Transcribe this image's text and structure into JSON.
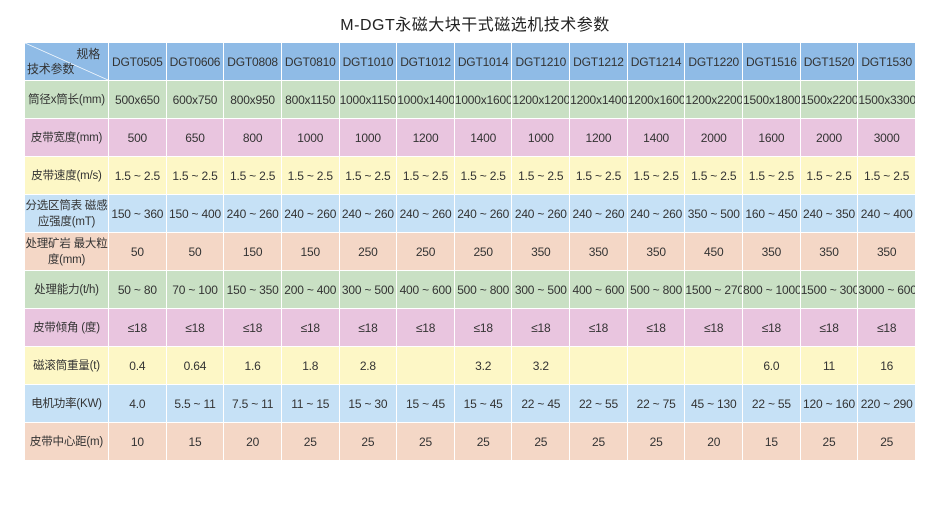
{
  "title": "M-DGT永磁大块干式磁选机技术参数",
  "header": {
    "corner_top": "规格",
    "corner_bottom": "技术参数",
    "models": [
      "DGT0505",
      "DGT0606",
      "DGT0808",
      "DGT0810",
      "DGT1010",
      "DGT1012",
      "DGT1014",
      "DGT1210",
      "DGT1212",
      "DGT1214",
      "DGT1220",
      "DGT1516",
      "DGT1520",
      "DGT1530"
    ]
  },
  "colors": {
    "header": "#8fbbe6",
    "green": "#c9e0c4",
    "pink": "#e9c5df",
    "yellow": "#fdf7c6",
    "blue": "#c6e1f6",
    "salmon": "#f4d7c6"
  },
  "rows": [
    {
      "label": "筒径x筒长(mm)",
      "color": "#c9e0c4",
      "values": [
        "500x650",
        "600x750",
        "800x950",
        "800x1150",
        "1000x1150",
        "1000x1400",
        "1000x1600",
        "1200x1200",
        "1200x1400",
        "1200x1600",
        "1200x2200",
        "1500x1800",
        "1500x2200",
        "1500x3300"
      ]
    },
    {
      "label": "皮带宽度(mm)",
      "color": "#e9c5df",
      "values": [
        "500",
        "650",
        "800",
        "1000",
        "1000",
        "1200",
        "1400",
        "1000",
        "1200",
        "1400",
        "2000",
        "1600",
        "2000",
        "3000"
      ]
    },
    {
      "label": "皮带速度(m/s)",
      "color": "#fdf7c6",
      "values": [
        "1.5 ~ 2.5",
        "1.5 ~ 2.5",
        "1.5 ~ 2.5",
        "1.5 ~ 2.5",
        "1.5 ~ 2.5",
        "1.5 ~ 2.5",
        "1.5 ~ 2.5",
        "1.5 ~ 2.5",
        "1.5 ~ 2.5",
        "1.5 ~ 2.5",
        "1.5 ~ 2.5",
        "1.5 ~ 2.5",
        "1.5 ~ 2.5",
        "1.5 ~ 2.5"
      ]
    },
    {
      "label": "分选区筒表 磁感应强度(mT)",
      "color": "#c6e1f6",
      "values": [
        "150 ~ 360",
        "150 ~ 400",
        "240 ~ 260",
        "240 ~ 260",
        "240 ~ 260",
        "240 ~ 260",
        "240 ~ 260",
        "240 ~ 260",
        "240 ~ 260",
        "240 ~ 260",
        "350 ~ 500",
        "160 ~ 450",
        "240 ~ 350",
        "240 ~ 400"
      ]
    },
    {
      "label": "处理矿岩 最大粒度(mm)",
      "color": "#f4d7c6",
      "values": [
        "50",
        "50",
        "150",
        "150",
        "250",
        "250",
        "250",
        "350",
        "350",
        "350",
        "450",
        "350",
        "350",
        "350"
      ]
    },
    {
      "label": "处理能力(t/h)",
      "color": "#c9e0c4",
      "values": [
        "50 ~ 80",
        "70 ~ 100",
        "150 ~ 350",
        "200 ~ 400",
        "300 ~ 500",
        "400 ~ 600",
        "500 ~ 800",
        "300 ~ 500",
        "400 ~ 600",
        "500 ~ 800",
        "1500 ~ 2700",
        "800 ~ 1000",
        "1500 ~ 3000",
        "3000 ~ 6000"
      ]
    },
    {
      "label": "皮带倾角 (度)",
      "color": "#e9c5df",
      "values": [
        "≤18",
        "≤18",
        "≤18",
        "≤18",
        "≤18",
        "≤18",
        "≤18",
        "≤18",
        "≤18",
        "≤18",
        "≤18",
        "≤18",
        "≤18",
        "≤18"
      ]
    },
    {
      "label": "磁滚筒重量(t)",
      "color": "#fdf7c6",
      "values": [
        "0.4",
        "0.64",
        "1.6",
        "1.8",
        "2.8",
        "",
        "3.2",
        "3.2",
        "",
        "",
        "",
        "6.0",
        "11",
        "16"
      ]
    },
    {
      "label": "电机功率(KW)",
      "color": "#c6e1f6",
      "values": [
        "4.0",
        "5.5 ~ 11",
        "7.5 ~ 11",
        "11 ~ 15",
        "15 ~ 30",
        "15 ~ 45",
        "15 ~ 45",
        "22 ~ 45",
        "22 ~ 55",
        "22 ~ 75",
        "45 ~ 130",
        "22 ~ 55",
        "120 ~ 160",
        "220 ~ 290"
      ]
    },
    {
      "label": "皮带中心距(m)",
      "color": "#f4d7c6",
      "values": [
        "10",
        "15",
        "20",
        "25",
        "25",
        "25",
        "25",
        "25",
        "25",
        "25",
        "20",
        "15",
        "25",
        "25"
      ]
    }
  ]
}
